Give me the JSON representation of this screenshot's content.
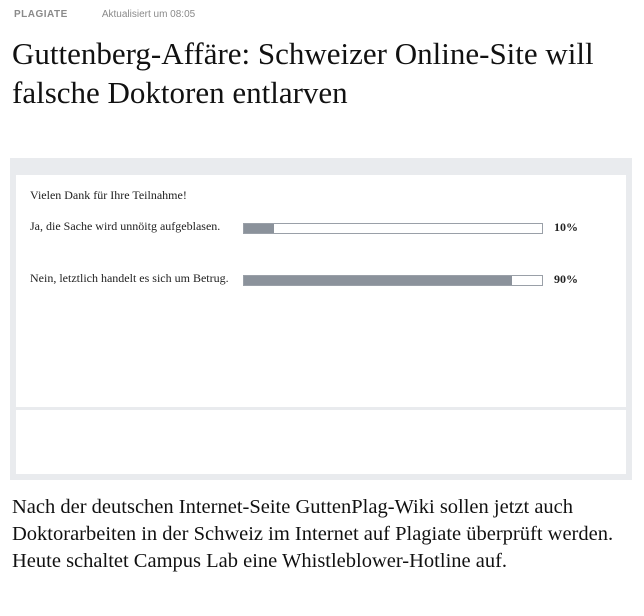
{
  "header": {
    "kicker": "PLAGIATE",
    "updated": "Aktualisiert um 08:05"
  },
  "article": {
    "headline": "Guttenberg-Affäre: Schweizer Online-Site will falsche Doktoren entlarven",
    "teaser": "Nach der deutschen Internet-Seite GuttenPlag-Wiki sollen jetzt auch Doktorarbeiten in der Schweiz im Internet auf Plagiate überprüft werden. Heute schaltet Campus Lab eine Whistleblower-Hotline auf."
  },
  "poll": {
    "thanks": "Vielen Dank für Ihre Teilnahme!",
    "options": [
      {
        "label": "Ja, die Sache wird unnöitg aufgeblasen.",
        "percent_label": "10%",
        "share": 0.1
      },
      {
        "label": "Nein, letztlich handelt es sich um Betrug.",
        "percent_label": "90%",
        "share": 0.9
      }
    ],
    "colors": {
      "bar_fill": "#8b929b",
      "panel_bg": "#e9ebee"
    }
  }
}
